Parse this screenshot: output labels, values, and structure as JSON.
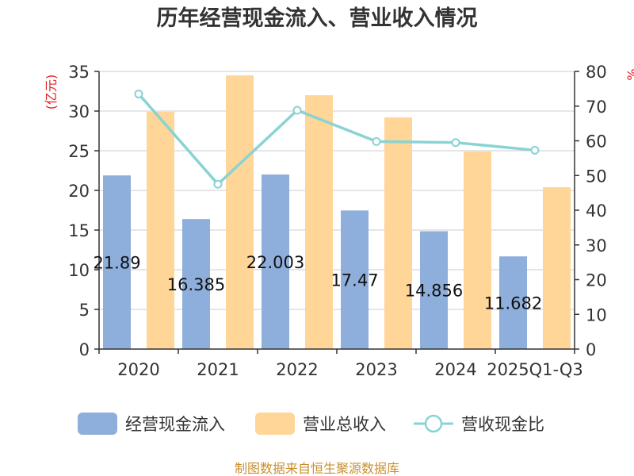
{
  "chart_data": {
    "type": "bar",
    "title": "历年经营现金流入、营业收入情况",
    "categories": [
      "2020",
      "2021",
      "2022",
      "2023",
      "2024",
      "2025Q1-Q3"
    ],
    "series": [
      {
        "name": "经营现金流入",
        "axis": "left",
        "kind": "bar",
        "color": "#8eaedb",
        "values": [
          21.89,
          16.385,
          22.003,
          17.47,
          14.856,
          11.682
        ],
        "labels": [
          "21.89",
          "16.385",
          "22.003",
          "17.47",
          "14.856",
          "11.682"
        ]
      },
      {
        "name": "营业总收入",
        "axis": "left",
        "kind": "bar",
        "color": "#ffd698",
        "values": [
          29.9,
          34.5,
          32.0,
          29.2,
          24.9,
          20.4
        ]
      },
      {
        "name": "营收现金比",
        "axis": "right",
        "kind": "line",
        "color": "#8ad3d3",
        "values": [
          73.5,
          47.5,
          68.8,
          59.8,
          59.5,
          57.3
        ]
      }
    ],
    "y_left": {
      "label": "(亿元)",
      "min": 0,
      "max": 35,
      "ticks": [
        0,
        5,
        10,
        15,
        20,
        25,
        30,
        35
      ]
    },
    "y_right": {
      "label": "%",
      "min": 0,
      "max": 80,
      "ticks": [
        0,
        10,
        20,
        30,
        40,
        50,
        60,
        70,
        80
      ]
    },
    "grid": true,
    "legend_position": "bottom"
  },
  "footer": {
    "source": "制图数据来自恒生聚源数据库"
  }
}
